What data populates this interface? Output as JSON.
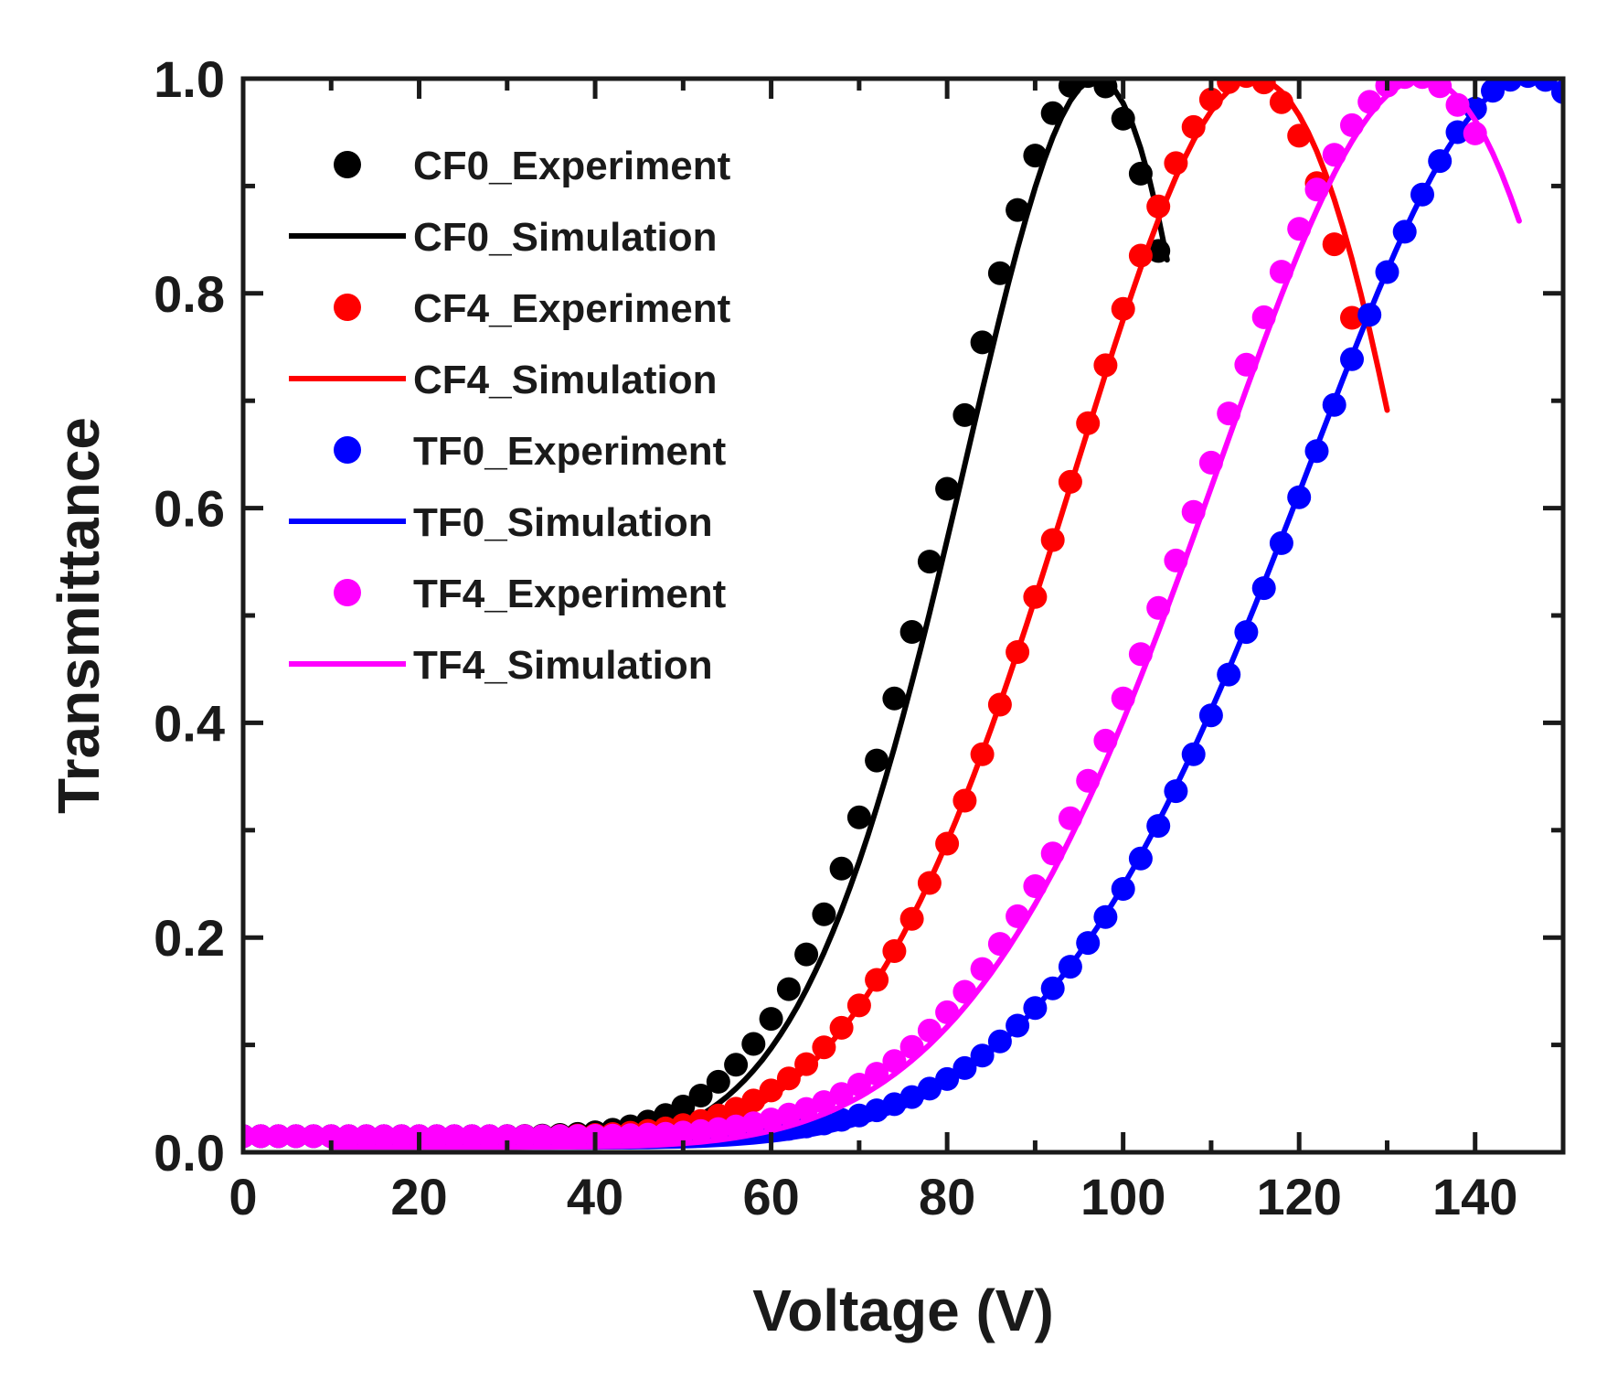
{
  "chart_data": {
    "type": "scatter",
    "xlabel": "Voltage (V)",
    "ylabel": "Transmittance",
    "xlim": [
      0,
      150
    ],
    "ylim": [
      0,
      1.0
    ],
    "x_ticks": [
      0,
      20,
      40,
      60,
      80,
      100,
      120,
      140
    ],
    "x_tick_labels": [
      "0",
      "20",
      "40",
      "60",
      "80",
      "100",
      "120",
      "140"
    ],
    "y_ticks": [
      0,
      0.2,
      0.4,
      0.6,
      0.8,
      1.0
    ],
    "y_tick_labels": [
      "0.0",
      "0.2",
      "0.4",
      "0.6",
      "0.8",
      "1.0"
    ],
    "legend_position": "top-left",
    "series": [
      {
        "name": "CF0_Experiment",
        "kind": "scatter",
        "color": "#000000",
        "model": {
          "offset": 0.015,
          "v0": 22,
          "v90": 96,
          "n": 2.3,
          "amp": 0.9875
        },
        "x_range": [
          0,
          105,
          2
        ]
      },
      {
        "name": "CF0_Simulation",
        "kind": "line",
        "color": "#000000",
        "model": {
          "offset": 0.005,
          "v0": 24,
          "v90": 97,
          "n": 2.3,
          "amp": 0.995
        },
        "x_range": [
          10,
          105,
          1
        ]
      },
      {
        "name": "CF4_Experiment",
        "kind": "scatter",
        "color": "#ff0000",
        "model": {
          "offset": 0.015,
          "v0": 24,
          "v90": 114,
          "n": 2.2,
          "amp": 0.9875
        },
        "x_range": [
          0,
          126,
          2
        ]
      },
      {
        "name": "CF4_Simulation",
        "kind": "line",
        "color": "#ff0000",
        "model": {
          "offset": 0.005,
          "v0": 26,
          "v90": 115,
          "n": 2.05,
          "amp": 0.995
        },
        "x_range": [
          10,
          130,
          1
        ]
      },
      {
        "name": "TF0_Experiment",
        "kind": "scatter",
        "color": "#0000ff",
        "model": {
          "offset": 0.015,
          "v0": 32,
          "v90": 146,
          "n": 2.2,
          "amp": 0.9875
        },
        "x_range": [
          0,
          150,
          2
        ]
      },
      {
        "name": "TF0_Simulation",
        "kind": "line",
        "color": "#0000ff",
        "model": {
          "offset": 0.005,
          "v0": 30,
          "v90": 146,
          "n": 2.2,
          "amp": 0.995
        },
        "x_range": [
          10,
          150,
          1
        ]
      },
      {
        "name": "TF4_Experiment",
        "kind": "scatter",
        "color": "#ff00ff",
        "model": {
          "offset": 0.015,
          "v0": 26,
          "v90": 133,
          "n": 2.2,
          "amp": 0.9875
        },
        "x_range": [
          0,
          140,
          2
        ]
      },
      {
        "name": "TF4_Simulation",
        "kind": "line",
        "color": "#ff00ff",
        "model": {
          "offset": 0.005,
          "v0": 26,
          "v90": 134,
          "n": 2.2,
          "amp": 0.995
        },
        "x_range": [
          10,
          145,
          1
        ]
      }
    ]
  }
}
